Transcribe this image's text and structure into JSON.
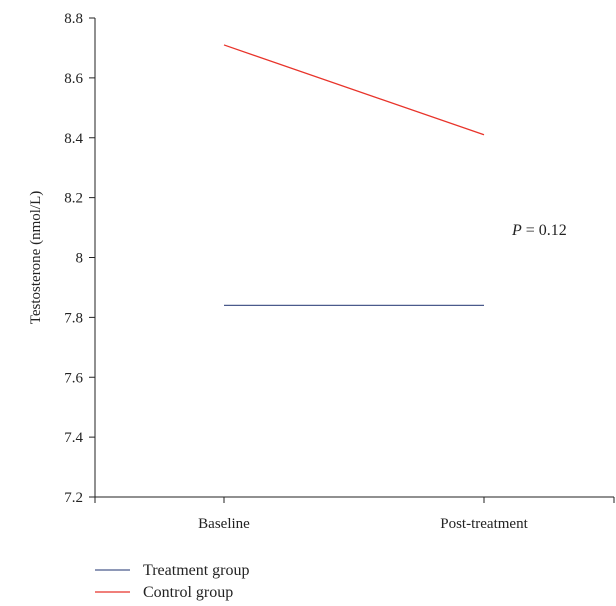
{
  "chart_data": {
    "type": "line",
    "categories": [
      "Baseline",
      "Post-treatment"
    ],
    "series": [
      {
        "name": "Treatment group",
        "values": [
          7.84,
          7.84
        ],
        "color": "#4a5a8c"
      },
      {
        "name": "Control group",
        "values": [
          8.71,
          8.41
        ],
        "color": "#e8332a"
      }
    ],
    "ylabel": "Testosterone (nmol/L)",
    "ylim": [
      7.2,
      8.8
    ],
    "yticks": [
      7.2,
      7.4,
      7.6,
      7.8,
      8.0,
      8.2,
      8.4,
      8.6,
      8.8
    ],
    "ytick_labels": [
      "7.2",
      "7.4",
      "7.6",
      "7.8",
      "8",
      "8.2",
      "8.4",
      "8.6",
      "8.8"
    ],
    "grid": false,
    "legend_position": "bottom-left",
    "annotation": {
      "italic": "P",
      "rest": " = 0.12"
    }
  }
}
